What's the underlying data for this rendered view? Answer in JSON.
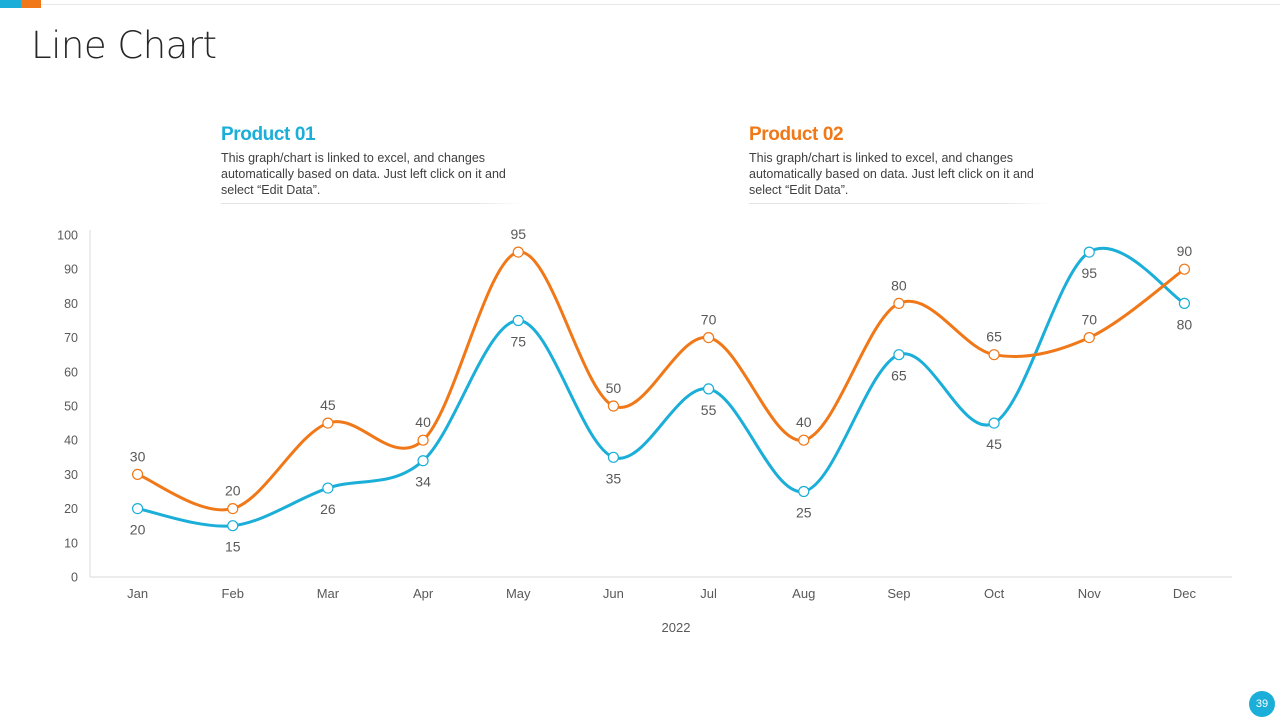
{
  "slide": {
    "title": "Line Chart",
    "page_number": "39"
  },
  "legend": [
    {
      "title": "Product 01",
      "color": "#1aaed8",
      "description": "This graph/chart is linked to excel, and changes automatically based on data. Just left click on it and select “Edit Data”."
    },
    {
      "title": "Product 02",
      "color": "#f07818",
      "description": "This graph/chart is linked to excel, and changes automatically based on data. Just left click on it and select “Edit Data”."
    }
  ],
  "colors": {
    "product_01": "#1aaed8",
    "product_02": "#f07818",
    "axis": "#d9d9d9",
    "text": "#595959"
  },
  "chart_data": {
    "type": "line",
    "title": "",
    "xlabel": "2022",
    "ylabel": "",
    "categories": [
      "Jan",
      "Feb",
      "Mar",
      "Apr",
      "May",
      "Jun",
      "Jul",
      "Aug",
      "Sep",
      "Oct",
      "Nov",
      "Dec"
    ],
    "ylim": [
      0,
      100
    ],
    "yticks": [
      0,
      10,
      20,
      30,
      40,
      50,
      60,
      70,
      80,
      90,
      100
    ],
    "grid": false,
    "smooth": true,
    "series": [
      {
        "name": "Product 01",
        "color": "#1aaed8",
        "label_position": "below",
        "values": [
          20,
          15,
          26,
          34,
          75,
          35,
          55,
          25,
          65,
          45,
          95,
          80
        ]
      },
      {
        "name": "Product 02",
        "color": "#f07818",
        "label_position": "above",
        "values": [
          30,
          20,
          45,
          40,
          95,
          50,
          70,
          40,
          80,
          65,
          70,
          90
        ]
      }
    ]
  }
}
